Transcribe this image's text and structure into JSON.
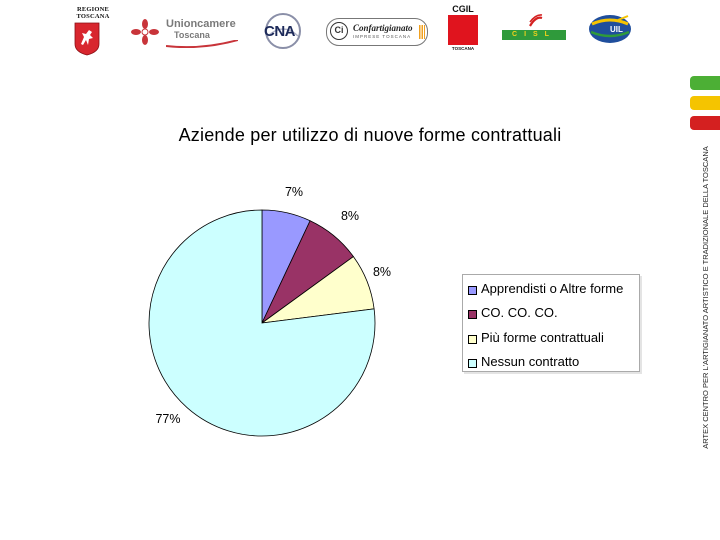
{
  "header": {
    "logos": [
      {
        "name": "regione-toscana",
        "text_line1": "REGIONE",
        "text_line2": "TOSCANA"
      },
      {
        "name": "unioncamere-toscana",
        "title": "Unioncamere",
        "subtitle": "Toscana"
      },
      {
        "name": "cna",
        "text": "CNA"
      },
      {
        "name": "confartigianato",
        "text": "Confartigianato",
        "subtitle": "IMPRESE TOSCANA"
      },
      {
        "name": "cgil-toscana",
        "title": "CGIL",
        "subtitle": "TOSCANA"
      },
      {
        "name": "cisl",
        "text": "CISL"
      },
      {
        "name": "uil",
        "text": "UIL"
      }
    ],
    "accent_colors": [
      "#4caf35",
      "#f5c400",
      "#d42020"
    ]
  },
  "side_caption": "ARTEX CENTRO PER L'ARTIGIANATO ARTISTICO E TRADIZIONALE DELLA TOSCANA",
  "chart_data": {
    "type": "pie",
    "title": "Aziende per utilizzo di nuove forme contrattuali",
    "categories": [
      "Apprendisti o Altre forme",
      "CO. CO. CO.",
      "Più forme contrattuali",
      "Nessun contratto"
    ],
    "values": [
      7,
      8,
      8,
      77
    ],
    "labels": [
      "7%",
      "8%",
      "8%",
      "77%"
    ],
    "colors": [
      "#9999ff",
      "#993366",
      "#ffffcc",
      "#ccffff"
    ],
    "legend": "right"
  }
}
